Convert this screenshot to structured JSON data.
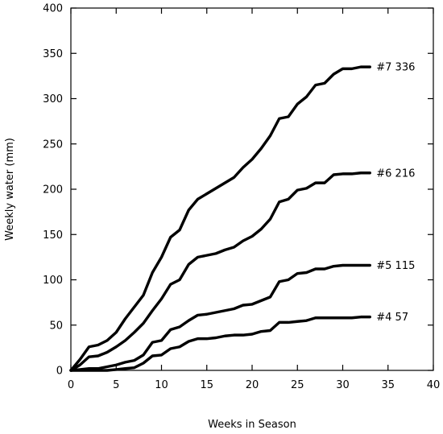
{
  "chart_data": {
    "type": "line",
    "title": "",
    "xlabel": "Weeks in Season",
    "ylabel": "Weekly water (mm)",
    "xlim": [
      0,
      40
    ],
    "ylim": [
      0,
      400
    ],
    "xticks": [
      0,
      5,
      10,
      15,
      20,
      25,
      30,
      35,
      40
    ],
    "yticks": [
      0,
      50,
      100,
      150,
      200,
      250,
      300,
      350,
      400
    ],
    "grid": false,
    "legend": "none",
    "line_color": "#000000",
    "series": [
      {
        "label": "#7 336",
        "x": [
          0,
          1,
          2,
          3,
          4,
          5,
          6,
          7,
          8,
          9,
          10,
          11,
          12,
          13,
          14,
          15,
          16,
          17,
          18,
          19,
          20,
          21,
          22,
          23,
          24,
          25,
          26,
          27,
          28,
          29,
          30,
          31,
          32,
          33
        ],
        "y": [
          0,
          12,
          26,
          28,
          33,
          42,
          57,
          70,
          83,
          108,
          125,
          147,
          155,
          177,
          189,
          195,
          201,
          207,
          213,
          224,
          233,
          245,
          259,
          278,
          280,
          294,
          302,
          315,
          317,
          327,
          333,
          333,
          335,
          335
        ]
      },
      {
        "label": "#6 216",
        "x": [
          0,
          1,
          2,
          3,
          4,
          5,
          6,
          7,
          8,
          9,
          10,
          11,
          12,
          13,
          14,
          15,
          16,
          17,
          18,
          19,
          20,
          21,
          22,
          23,
          24,
          25,
          26,
          27,
          28,
          29,
          30,
          31,
          32,
          33
        ],
        "y": [
          0,
          6,
          15,
          16,
          20,
          26,
          33,
          42,
          52,
          66,
          79,
          95,
          100,
          117,
          125,
          127,
          129,
          133,
          136,
          143,
          148,
          156,
          167,
          186,
          189,
          199,
          201,
          207,
          207,
          216,
          217,
          217,
          218,
          218
        ]
      },
      {
        "label": "#5 115",
        "x": [
          0,
          1,
          2,
          3,
          4,
          5,
          6,
          7,
          8,
          9,
          10,
          11,
          12,
          13,
          14,
          15,
          16,
          17,
          18,
          19,
          20,
          21,
          22,
          23,
          24,
          25,
          26,
          27,
          28,
          29,
          30,
          31,
          32,
          33
        ],
        "y": [
          0,
          1,
          2,
          2,
          4,
          6,
          9,
          11,
          17,
          31,
          33,
          45,
          48,
          55,
          61,
          62,
          64,
          66,
          68,
          72,
          73,
          77,
          81,
          98,
          100,
          107,
          108,
          112,
          112,
          115,
          116,
          116,
          116,
          116
        ]
      },
      {
        "label": "#4 57",
        "x": [
          0,
          1,
          2,
          3,
          4,
          5,
          6,
          7,
          8,
          9,
          10,
          11,
          12,
          13,
          14,
          15,
          16,
          17,
          18,
          19,
          20,
          21,
          22,
          23,
          24,
          25,
          26,
          27,
          28,
          29,
          30,
          31,
          32,
          33
        ],
        "y": [
          0,
          0,
          0,
          0,
          0,
          1,
          2,
          3,
          8,
          16,
          17,
          24,
          26,
          32,
          35,
          35,
          36,
          38,
          39,
          39,
          40,
          43,
          44,
          53,
          53,
          54,
          55,
          58,
          58,
          58,
          58,
          58,
          59,
          59
        ]
      }
    ]
  }
}
